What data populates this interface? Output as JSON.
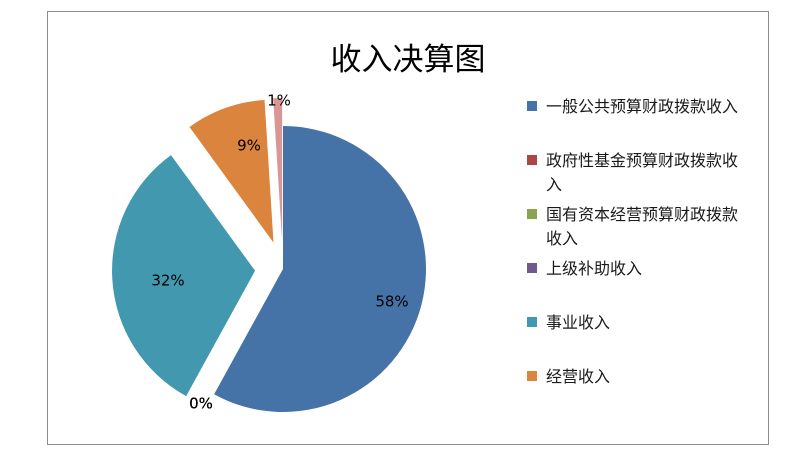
{
  "chart_data": {
    "type": "pie",
    "title": "收入决算图",
    "legend_position": "right",
    "slices": [
      {
        "name": "一般公共预算财政拨款收入",
        "value": 58,
        "label": "58%",
        "color": "#4572a7"
      },
      {
        "name": "政府性基金预算财政拨款收入",
        "value": 0,
        "label": "0%",
        "color": "#aa4643"
      },
      {
        "name": "国有资本经营预算财政拨款收入",
        "value": 0,
        "label": "0%",
        "color": "#89a54e"
      },
      {
        "name": "上级补助收入",
        "value": 0,
        "label": "0%",
        "color": "#71588f"
      },
      {
        "name": "事业收入",
        "value": 32,
        "label": "32%",
        "color": "#4198af"
      },
      {
        "name": "经营收入",
        "value": 9,
        "label": "9%",
        "color": "#db843d"
      },
      {
        "name": "",
        "value": 1,
        "label": "1%",
        "color": "#d99694"
      }
    ]
  }
}
